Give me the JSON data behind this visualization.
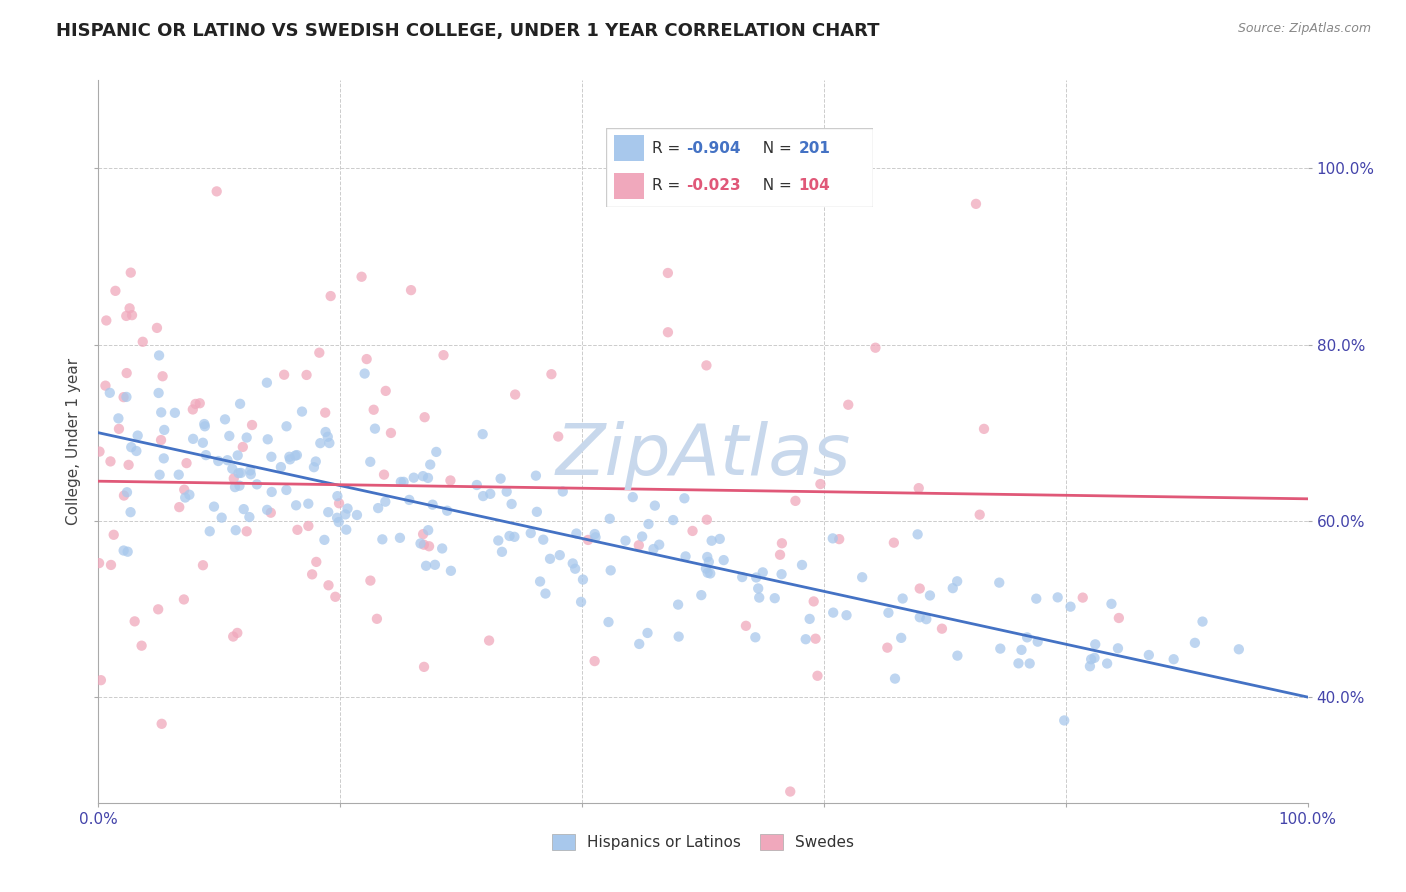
{
  "title": "HISPANIC OR LATINO VS SWEDISH COLLEGE, UNDER 1 YEAR CORRELATION CHART",
  "source_text": "Source: ZipAtlas.com",
  "ylabel": "College, Under 1 year",
  "xlim": [
    0.0,
    1.0
  ],
  "ylim": [
    0.28,
    1.1
  ],
  "x_tick_positions": [
    0.0,
    0.2,
    0.4,
    0.6,
    0.8,
    1.0
  ],
  "x_tick_labels_show": [
    "0.0%",
    "",
    "",
    "",
    "",
    "100.0%"
  ],
  "y_ticks": [
    0.4,
    0.6,
    0.8,
    1.0
  ],
  "y_tick_labels": [
    "40.0%",
    "60.0%",
    "80.0%",
    "100.0%"
  ],
  "blue_color": "#A8C8EC",
  "pink_color": "#F0A8BC",
  "blue_line_color": "#4472C4",
  "pink_line_color": "#E05878",
  "blue_R": -0.904,
  "blue_N": 201,
  "pink_R": -0.023,
  "pink_N": 104,
  "blue_line_x0": 0.0,
  "blue_line_y0": 0.7,
  "blue_line_x1": 1.0,
  "blue_line_y1": 0.4,
  "pink_line_x0": 0.0,
  "pink_line_y0": 0.645,
  "pink_line_x1": 1.0,
  "pink_line_y1": 0.625,
  "grid_color": "#CCCCCC",
  "background_color": "#FFFFFF",
  "title_fontsize": 13,
  "label_fontsize": 11,
  "tick_fontsize": 11,
  "watermark_text": "ZipAtlas",
  "watermark_color": "#C8D8EC",
  "watermark_fontsize": 52,
  "legend_blue_label": "R = -0.904  N = 201",
  "legend_pink_label": "R = -0.023  N = 104",
  "bottom_legend_blue": "Hispanics or Latinos",
  "bottom_legend_pink": "Swedes"
}
